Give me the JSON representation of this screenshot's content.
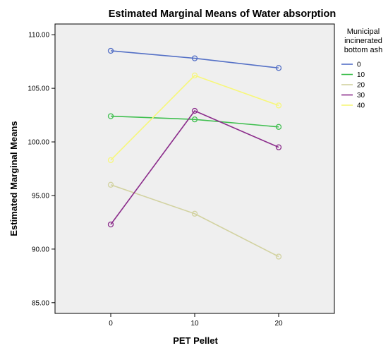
{
  "chart_data": {
    "type": "line",
    "title": "Estimated Marginal Means of Water absorption",
    "xlabel": "PET Pellet",
    "ylabel": "Estimated Marginal Means",
    "categories": [
      "0",
      "10",
      "20"
    ],
    "ylim": [
      84.0,
      111.0
    ],
    "yticks": [
      "85.00",
      "90.00",
      "95.00",
      "100.00",
      "105.00",
      "110.00"
    ],
    "legend": {
      "title_lines": [
        "Municipal",
        "incinerated",
        "bottom ash"
      ],
      "placement": "right"
    },
    "series": [
      {
        "name": "0",
        "color": "#5470c6",
        "values": [
          108.5,
          107.8,
          106.9
        ]
      },
      {
        "name": "10",
        "color": "#3fbf4f",
        "values": [
          102.4,
          102.1,
          101.4
        ]
      },
      {
        "name": "20",
        "color": "#d2d2a0",
        "values": [
          96.0,
          93.3,
          89.3
        ]
      },
      {
        "name": "30",
        "color": "#8b2c8b",
        "values": [
          92.3,
          102.9,
          99.5
        ]
      },
      {
        "name": "40",
        "color": "#f7f77a",
        "values": [
          98.3,
          106.2,
          103.4
        ]
      }
    ],
    "plot_background": "#efefef"
  }
}
